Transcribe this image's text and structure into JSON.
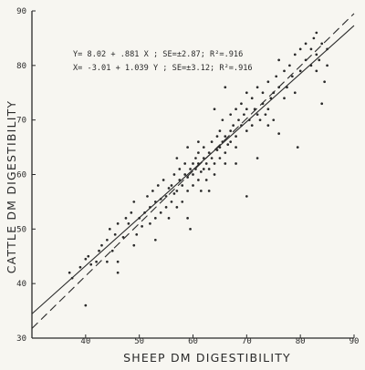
{
  "chart_data": {
    "type": "scatter",
    "xlabel": "SHEEP DM DIGESTIBILITY",
    "ylabel": "CATTLE DM DIGESTIBILITY",
    "xlim": [
      30,
      90
    ],
    "ylim": [
      30,
      90
    ],
    "x_ticks": [
      "30",
      "40",
      "50",
      "60",
      "70",
      "80",
      "90"
    ],
    "y_ticks": [
      "30",
      "40",
      "50",
      "60",
      "70",
      "80",
      "90"
    ],
    "grid": false,
    "annotations": [
      "Y= 8.02 + .881 X ; SE=±2.87; R²=.916",
      "X= -3.01 + 1.039 Y ; SE=±3.12; R²=.916"
    ],
    "lines": [
      {
        "style": "solid",
        "intercept": 8.02,
        "slope": 0.881
      },
      {
        "style": "dashed",
        "intercept": 2.897,
        "slope": 0.9625
      }
    ],
    "points": [
      [
        37,
        42
      ],
      [
        37.5,
        41
      ],
      [
        39,
        43
      ],
      [
        40,
        44.5
      ],
      [
        40.5,
        45
      ],
      [
        40,
        36
      ],
      [
        41,
        43.5
      ],
      [
        42,
        44
      ],
      [
        42.5,
        46
      ],
      [
        43,
        47
      ],
      [
        44,
        48
      ],
      [
        44.5,
        50
      ],
      [
        45,
        46
      ],
      [
        45.5,
        49
      ],
      [
        46,
        51
      ],
      [
        46,
        44
      ],
      [
        47,
        48.5
      ],
      [
        47.5,
        52
      ],
      [
        48,
        51
      ],
      [
        48.5,
        53
      ],
      [
        49,
        55
      ],
      [
        49.5,
        49
      ],
      [
        50,
        52
      ],
      [
        50.5,
        50.5
      ],
      [
        51,
        53
      ],
      [
        51.5,
        56
      ],
      [
        52,
        54
      ],
      [
        52,
        51
      ],
      [
        52.5,
        57
      ],
      [
        53,
        55
      ],
      [
        53,
        52
      ],
      [
        53.5,
        58
      ],
      [
        54,
        55.5
      ],
      [
        54,
        53
      ],
      [
        54.5,
        59
      ],
      [
        55,
        56
      ],
      [
        55,
        54
      ],
      [
        55.5,
        57.5
      ],
      [
        55.5,
        52
      ],
      [
        56,
        58
      ],
      [
        56,
        55
      ],
      [
        56.5,
        60
      ],
      [
        56.5,
        56.5
      ],
      [
        57,
        57
      ],
      [
        57,
        54
      ],
      [
        57.5,
        59
      ],
      [
        57.5,
        61
      ],
      [
        58,
        58
      ],
      [
        58,
        55
      ],
      [
        58.5,
        60
      ],
      [
        58.5,
        62
      ],
      [
        59,
        57
      ],
      [
        59,
        59.5
      ],
      [
        59,
        52
      ],
      [
        59.5,
        61
      ],
      [
        59.5,
        50
      ],
      [
        60,
        60
      ],
      [
        60,
        62
      ],
      [
        60,
        58
      ],
      [
        60.5,
        61
      ],
      [
        60.5,
        63
      ],
      [
        61,
        59
      ],
      [
        61,
        62
      ],
      [
        61,
        64
      ],
      [
        61.5,
        60.5
      ],
      [
        61.5,
        57
      ],
      [
        62,
        61
      ],
      [
        62,
        63
      ],
      [
        62,
        65
      ],
      [
        62.5,
        62
      ],
      [
        62.5,
        59
      ],
      [
        63,
        64
      ],
      [
        63,
        61
      ],
      [
        63.5,
        66
      ],
      [
        63.5,
        63
      ],
      [
        64,
        62
      ],
      [
        64,
        60
      ],
      [
        64.5,
        64.5
      ],
      [
        64.5,
        67
      ],
      [
        65,
        65
      ],
      [
        65,
        63
      ],
      [
        65,
        68
      ],
      [
        65.5,
        66
      ],
      [
        65.5,
        70
      ],
      [
        66,
        64
      ],
      [
        66,
        67
      ],
      [
        66,
        62
      ],
      [
        66.5,
        65.5
      ],
      [
        67,
        68
      ],
      [
        67,
        66
      ],
      [
        67,
        71
      ],
      [
        67.5,
        69
      ],
      [
        68,
        67
      ],
      [
        68,
        72
      ],
      [
        68,
        65
      ],
      [
        68.5,
        70
      ],
      [
        69,
        69
      ],
      [
        69,
        73
      ],
      [
        69.5,
        71
      ],
      [
        70,
        68
      ],
      [
        70,
        72
      ],
      [
        70,
        56
      ],
      [
        70.5,
        70
      ],
      [
        71,
        74
      ],
      [
        71,
        69
      ],
      [
        71.5,
        72
      ],
      [
        72,
        71
      ],
      [
        72,
        76
      ],
      [
        72.5,
        70
      ],
      [
        73,
        73
      ],
      [
        73,
        75
      ],
      [
        73.5,
        71
      ],
      [
        74,
        72
      ],
      [
        74,
        77
      ],
      [
        74.5,
        74
      ],
      [
        75,
        75
      ],
      [
        75,
        70
      ],
      [
        75.5,
        78
      ],
      [
        76,
        76
      ],
      [
        76,
        81
      ],
      [
        77,
        74
      ],
      [
        77,
        79
      ],
      [
        77.5,
        76
      ],
      [
        78,
        80
      ],
      [
        78.5,
        78
      ],
      [
        79,
        82
      ],
      [
        79,
        75
      ],
      [
        80,
        79
      ],
      [
        80,
        83
      ],
      [
        81,
        81
      ],
      [
        81,
        84
      ],
      [
        82,
        80
      ],
      [
        82,
        83
      ],
      [
        82.5,
        85
      ],
      [
        83,
        79
      ],
      [
        83,
        82
      ],
      [
        83,
        86
      ],
      [
        83.5,
        81
      ],
      [
        84,
        84
      ],
      [
        84,
        73
      ],
      [
        84.5,
        77
      ],
      [
        85,
        80
      ],
      [
        85,
        83
      ],
      [
        79.5,
        65
      ],
      [
        76,
        67.5
      ],
      [
        70,
        75
      ],
      [
        66,
        76
      ],
      [
        64,
        72
      ],
      [
        46,
        42
      ],
      [
        44,
        44
      ],
      [
        49,
        47
      ],
      [
        53,
        48
      ],
      [
        57,
        63
      ],
      [
        59,
        65
      ],
      [
        61,
        66
      ],
      [
        63,
        57
      ],
      [
        68,
        62
      ],
      [
        72,
        63
      ],
      [
        74,
        69
      ]
    ]
  }
}
